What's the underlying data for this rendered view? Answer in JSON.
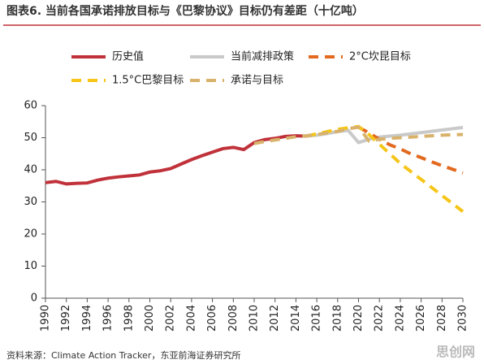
{
  "chart_data": {
    "type": "line",
    "title": "图表6.   当前各国承诺排放目标与《巴黎协议》目标仍有差距（十亿吨）",
    "source": "资料来源：Climate Action Tracker，东亚前海证券研究所",
    "watermark": "思创网",
    "x": [
      1990,
      1991,
      1992,
      1993,
      1994,
      1995,
      1996,
      1997,
      1998,
      1999,
      2000,
      2001,
      2002,
      2003,
      2004,
      2005,
      2006,
      2007,
      2008,
      2009,
      2010,
      2011,
      2012,
      2013,
      2014,
      2015,
      2016,
      2017,
      2018,
      2019,
      2020,
      2021,
      2022,
      2023,
      2024,
      2025,
      2026,
      2027,
      2028,
      2029,
      2030
    ],
    "xlim": [
      1990,
      2030
    ],
    "xticks": [
      1990,
      1992,
      1994,
      1996,
      1998,
      2000,
      2002,
      2004,
      2006,
      2008,
      2010,
      2012,
      2014,
      2016,
      2018,
      2020,
      2022,
      2024,
      2026,
      2028,
      2030
    ],
    "ylim": [
      0,
      60
    ],
    "yticks": [
      0,
      10,
      20,
      30,
      40,
      50,
      60
    ],
    "legend": "top",
    "series": [
      {
        "name": "历史值",
        "color": "#c0313a",
        "dashed": false,
        "values": [
          36.0,
          36.4,
          35.6,
          35.8,
          35.9,
          36.8,
          37.4,
          37.8,
          38.1,
          38.4,
          39.3,
          39.7,
          40.4,
          41.8,
          43.2,
          44.4,
          45.5,
          46.6,
          47.0,
          46.3,
          48.5,
          49.4,
          49.8,
          50.4,
          50.6,
          50.5,
          null,
          null,
          null,
          null,
          null,
          null,
          null,
          null,
          null,
          null,
          null,
          null,
          null,
          null,
          null
        ]
      },
      {
        "name": "当前减排政策",
        "color": "#c9c9c9",
        "dashed": false,
        "values": [
          null,
          null,
          null,
          null,
          null,
          null,
          null,
          null,
          null,
          null,
          null,
          null,
          null,
          null,
          null,
          null,
          null,
          null,
          null,
          null,
          null,
          null,
          null,
          null,
          null,
          50.5,
          50.8,
          51.3,
          51.9,
          52.3,
          48.5,
          49.5,
          50.2,
          50.5,
          50.8,
          51.2,
          51.6,
          52.0,
          52.4,
          52.8,
          53.2
        ]
      },
      {
        "name": "2°C坎昆目标",
        "color": "#e2691e",
        "dashed": true,
        "values": [
          null,
          null,
          null,
          null,
          null,
          null,
          null,
          null,
          null,
          null,
          null,
          null,
          null,
          null,
          null,
          null,
          null,
          null,
          null,
          null,
          null,
          null,
          null,
          null,
          null,
          null,
          null,
          null,
          null,
          null,
          53.3,
          51.5,
          49.5,
          47.8,
          46.5,
          45.0,
          43.8,
          42.5,
          41.3,
          40.2,
          39.0
        ]
      },
      {
        "name": "1.5°C巴黎目标",
        "color": "#f5c518",
        "dashed": true,
        "values": [
          null,
          null,
          null,
          null,
          null,
          null,
          null,
          null,
          null,
          null,
          null,
          null,
          null,
          null,
          null,
          null,
          null,
          null,
          null,
          null,
          null,
          null,
          null,
          null,
          null,
          50.5,
          51.2,
          51.9,
          52.6,
          53.1,
          53.5,
          51.0,
          48.0,
          45.0,
          42.0,
          39.5,
          37.0,
          34.5,
          32.0,
          29.5,
          27.0
        ]
      },
      {
        "name": "承诺与目标",
        "color": "#d8b26a",
        "dashed": true,
        "values": [
          null,
          null,
          null,
          null,
          null,
          null,
          null,
          null,
          null,
          null,
          null,
          null,
          null,
          null,
          null,
          null,
          null,
          null,
          null,
          null,
          48.2,
          48.8,
          49.3,
          49.8,
          50.3,
          50.6,
          51.0,
          51.5,
          52.0,
          52.8,
          53.3,
          49.0,
          49.5,
          49.8,
          50.0,
          50.2,
          50.4,
          50.6,
          50.8,
          50.9,
          51.0
        ]
      }
    ]
  }
}
